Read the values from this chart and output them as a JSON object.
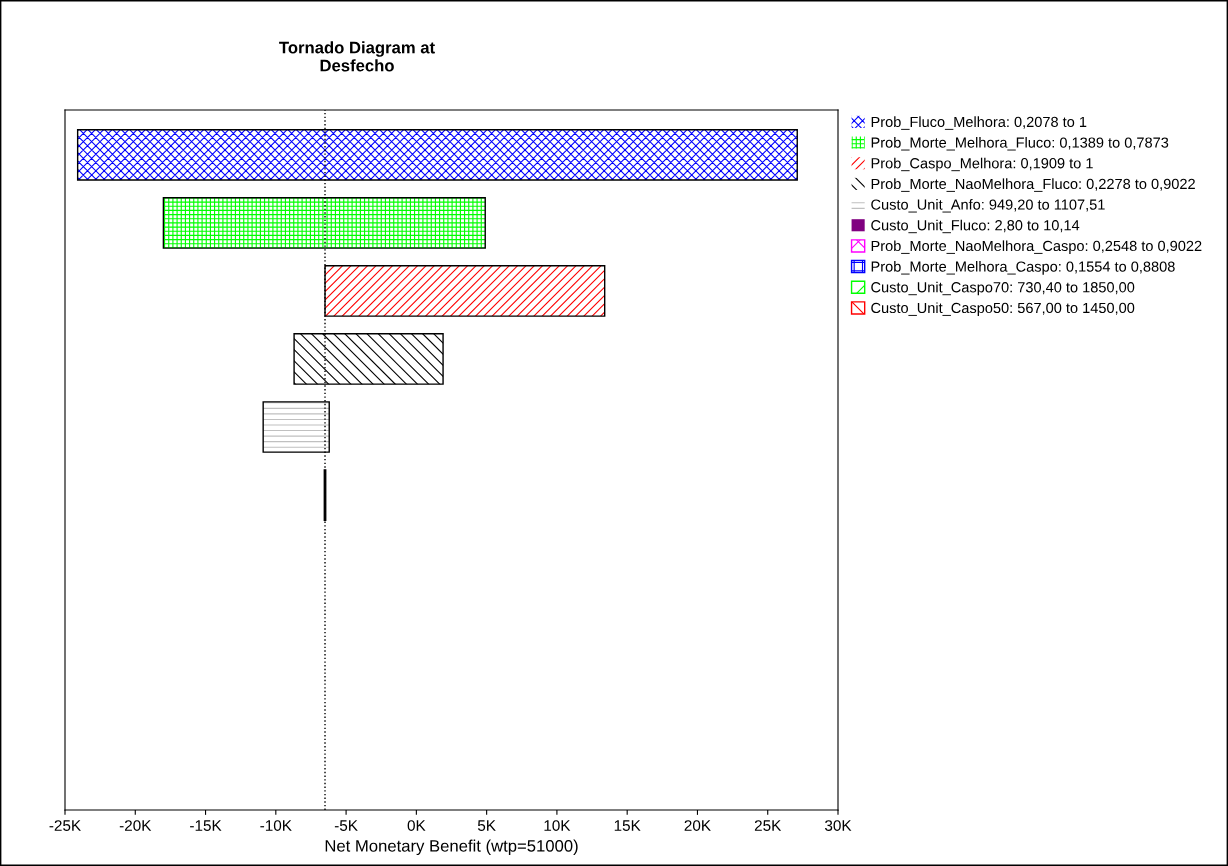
{
  "chart_data": {
    "type": "bar",
    "orientation": "horizontal",
    "title": "Tornado Diagram at\nDesfecho",
    "xlabel": "Net Monetary Benefit (wtp=51000)",
    "categories": [
      null,
      null,
      null,
      null,
      null,
      null,
      null,
      null,
      null,
      null
    ],
    "series": [
      {
        "name": "Prob_Fluco_Melhora: 0,2078 to 1",
        "color": "#0000ff",
        "base": [
          -24100,
          null,
          null,
          null,
          null,
          null,
          null,
          null,
          null,
          null
        ],
        "values": [
          51200,
          null,
          null,
          null,
          null,
          null,
          null,
          null,
          null,
          null
        ]
      },
      {
        "name": "Prob_Morte_Melhora_Fluco: 0,1389 to 0,7873",
        "color": "#00ff00",
        "base": [
          null,
          -18000,
          null,
          null,
          null,
          null,
          null,
          null,
          null,
          null
        ],
        "values": [
          null,
          22900,
          null,
          null,
          null,
          null,
          null,
          null,
          null,
          null
        ]
      },
      {
        "name": "Prob_Caspo_Melhora: 0,1909 to 1",
        "color": "#ff0000",
        "base": [
          null,
          null,
          -6500,
          null,
          null,
          null,
          null,
          null,
          null,
          null
        ],
        "values": [
          null,
          null,
          19900,
          null,
          null,
          null,
          null,
          null,
          null,
          null
        ]
      },
      {
        "name": "Prob_Morte_NaoMelhora_Fluco: 0,2278 to 0,9022",
        "color": "#000000",
        "base": [
          null,
          null,
          null,
          -8700,
          null,
          null,
          null,
          null,
          null,
          null
        ],
        "values": [
          null,
          null,
          null,
          10600,
          null,
          null,
          null,
          null,
          null,
          null
        ]
      },
      {
        "name": "Custo_Unit_Anfo: 949,20 to 1107,51",
        "color": "#c0c0c0",
        "base": [
          null,
          null,
          null,
          null,
          -10900,
          null,
          null,
          null,
          null,
          null
        ],
        "values": [
          null,
          null,
          null,
          null,
          4700,
          null,
          null,
          null,
          null,
          null
        ]
      },
      {
        "name": "Custo_Unit_Fluco: 2,80 to 10,14",
        "color": "#800080",
        "base": [
          null,
          null,
          null,
          null,
          null,
          -6550,
          null,
          null,
          null,
          null
        ],
        "values": [
          null,
          null,
          null,
          null,
          null,
          100,
          null,
          null,
          null,
          null
        ]
      },
      {
        "name": "Prob_Morte_NaoMelhora_Caspo: 0,2548 to 0,9022",
        "color": "#ff00ff",
        "base": [
          null,
          null,
          null,
          null,
          null,
          null,
          null,
          null,
          null,
          null
        ],
        "values": [
          null,
          null,
          null,
          null,
          null,
          null,
          null,
          null,
          null,
          null
        ]
      },
      {
        "name": "Prob_Morte_Melhora_Caspo: 0,1554 to 0,8808",
        "color": "#0000ff",
        "base": [
          null,
          null,
          null,
          null,
          null,
          null,
          null,
          null,
          null,
          null
        ],
        "values": [
          null,
          null,
          null,
          null,
          null,
          null,
          null,
          null,
          null,
          null
        ]
      },
      {
        "name": "Custo_Unit_Caspo70: 730,40 to 1850,00",
        "color": "#00ff00",
        "base": [
          null,
          null,
          null,
          null,
          null,
          null,
          null,
          null,
          null,
          null
        ],
        "values": [
          null,
          null,
          null,
          null,
          null,
          null,
          null,
          null,
          null,
          null
        ]
      },
      {
        "name": "Custo_Unit_Caspo50: 567,00 to 1450,00",
        "color": "#ff0000",
        "base": [
          null,
          null,
          null,
          null,
          null,
          null,
          null,
          null,
          null,
          null
        ],
        "values": [
          null,
          null,
          null,
          null,
          null,
          null,
          null,
          null,
          null,
          null
        ]
      }
    ],
    "xlim": [
      -25000,
      30000
    ],
    "xticks": [
      {
        "value": -25000,
        "label": "-25K"
      },
      {
        "value": -20000,
        "label": "-20K"
      },
      {
        "value": -15000,
        "label": "-15K"
      },
      {
        "value": -10000,
        "label": "-10K"
      },
      {
        "value": -5000,
        "label": "-5K"
      },
      {
        "value": 0,
        "label": "0K"
      },
      {
        "value": 5000,
        "label": "5K"
      },
      {
        "value": 10000,
        "label": "10K"
      },
      {
        "value": 15000,
        "label": "15K"
      },
      {
        "value": 20000,
        "label": "20K"
      },
      {
        "value": 25000,
        "label": "25K"
      },
      {
        "value": 30000,
        "label": "30K"
      }
    ],
    "ref_lines": [
      {
        "axis": "x",
        "value": -6500,
        "color": "#000000",
        "line_style": "dotted"
      }
    ],
    "tick_labels": "x",
    "grid": false,
    "legend": "right"
  }
}
